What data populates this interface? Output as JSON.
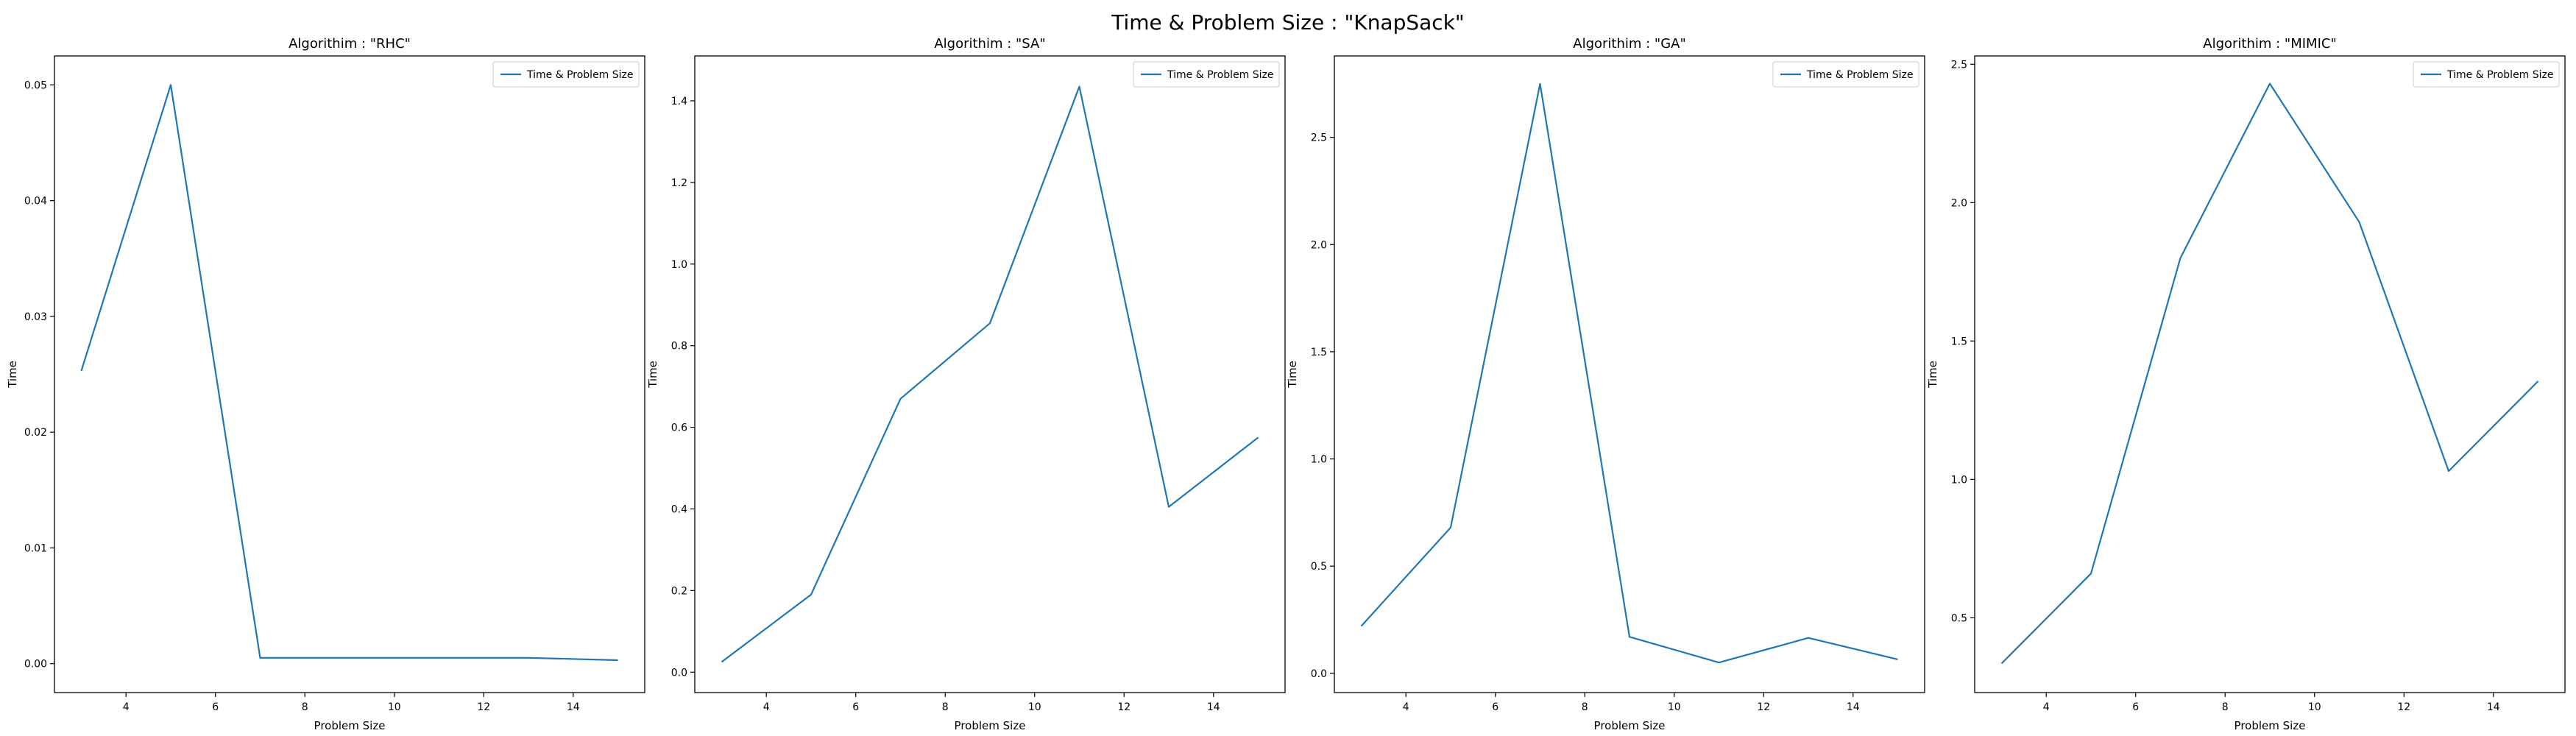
{
  "figure": {
    "title": "Time & Problem Size : \"KnapSack\""
  },
  "colors": {
    "series": "#1f77b4",
    "axis": "#000000",
    "legend_border": "#cccccc"
  },
  "chart_data": [
    {
      "type": "line",
      "title": "Algorithim : \"RHC\"",
      "xlabel": "Problem Size",
      "ylabel": "Time",
      "xlim": [
        2.4,
        15.6
      ],
      "ylim": [
        -0.0025,
        0.0525
      ],
      "xticks": [
        4,
        6,
        8,
        10,
        12,
        14
      ],
      "yticks": [
        0.0,
        0.01,
        0.02,
        0.03,
        0.04,
        0.05
      ],
      "ytick_labels": [
        "0.00",
        "0.01",
        "0.02",
        "0.03",
        "0.04",
        "0.05"
      ],
      "legend_position": "top-right",
      "series": [
        {
          "name": "Time & Problem Size",
          "x": [
            3,
            5,
            7,
            9,
            11,
            13,
            15
          ],
          "y": [
            0.0253,
            0.05,
            0.0005,
            0.0005,
            0.0005,
            0.0005,
            0.0003
          ]
        }
      ]
    },
    {
      "type": "line",
      "title": "Algorithim : \"SA\"",
      "xlabel": "Problem Size",
      "ylabel": "Time",
      "xlim": [
        2.4,
        15.6
      ],
      "ylim": [
        -0.05,
        1.51
      ],
      "xticks": [
        4,
        6,
        8,
        10,
        12,
        14
      ],
      "yticks": [
        0.0,
        0.2,
        0.4,
        0.6,
        0.8,
        1.0,
        1.2,
        1.4
      ],
      "ytick_labels": [
        "0.0",
        "0.2",
        "0.4",
        "0.6",
        "0.8",
        "1.0",
        "1.2",
        "1.4"
      ],
      "legend_position": "top-right",
      "series": [
        {
          "name": "Time & Problem Size",
          "x": [
            3,
            5,
            7,
            9,
            11,
            13,
            15
          ],
          "y": [
            0.025,
            0.19,
            0.67,
            0.855,
            1.435,
            0.405,
            0.575
          ]
        }
      ]
    },
    {
      "type": "line",
      "title": "Algorithim : \"GA\"",
      "xlabel": "Problem Size",
      "ylabel": "Time",
      "xlim": [
        2.4,
        15.6
      ],
      "ylim": [
        -0.09,
        2.88
      ],
      "xticks": [
        4,
        6,
        8,
        10,
        12,
        14
      ],
      "yticks": [
        0.0,
        0.5,
        1.0,
        1.5,
        2.0,
        2.5
      ],
      "ytick_labels": [
        "0.0",
        "0.5",
        "1.0",
        "1.5",
        "2.0",
        "2.5"
      ],
      "legend_position": "top-right",
      "series": [
        {
          "name": "Time & Problem Size",
          "x": [
            3,
            5,
            7,
            9,
            11,
            13,
            15
          ],
          "y": [
            0.22,
            0.68,
            2.75,
            0.17,
            0.05,
            0.165,
            0.065
          ]
        }
      ]
    },
    {
      "type": "line",
      "title": "Algorithim : \"MIMIC\"",
      "xlabel": "Problem Size",
      "ylabel": "Time",
      "xlim": [
        2.4,
        15.6
      ],
      "ylim": [
        0.23,
        2.53
      ],
      "xticks": [
        4,
        6,
        8,
        10,
        12,
        14
      ],
      "yticks": [
        0.5,
        1.0,
        1.5,
        2.0,
        2.5
      ],
      "ytick_labels": [
        "0.5",
        "1.0",
        "1.5",
        "2.0",
        "2.5"
      ],
      "legend_position": "top-right",
      "series": [
        {
          "name": "Time & Problem Size",
          "x": [
            3,
            5,
            7,
            9,
            11,
            13,
            15
          ],
          "y": [
            0.335,
            0.66,
            1.8,
            2.43,
            1.93,
            1.03,
            1.355
          ]
        }
      ]
    }
  ]
}
